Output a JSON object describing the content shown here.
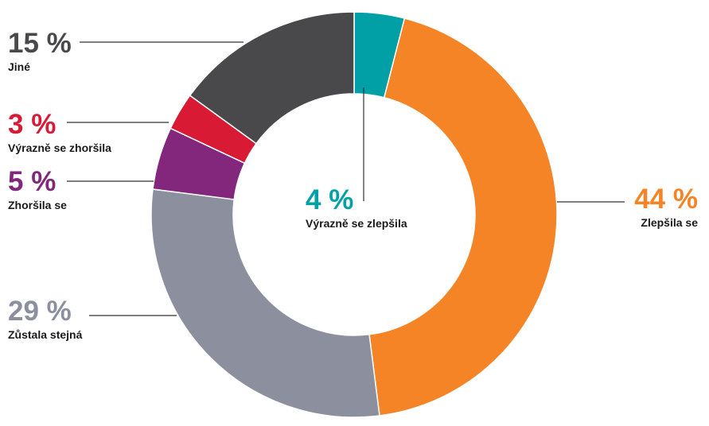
{
  "chart_data": {
    "type": "pie",
    "donut": true,
    "slices": [
      {
        "label": "Výrazně se zlepšila",
        "value": 4,
        "display": "4 %",
        "color": "#00a0a6"
      },
      {
        "label": "Zlepšila se",
        "value": 44,
        "display": "44 %",
        "color": "#f58426"
      },
      {
        "label": "Zůstala stejná",
        "value": 29,
        "display": "29 %",
        "color": "#8c8f9e"
      },
      {
        "label": "Zhoršila se",
        "value": 5,
        "display": "5 %",
        "color": "#83277d"
      },
      {
        "label": "Výrazně se zhoršila",
        "value": 3,
        "display": "3 %",
        "color": "#d91a35"
      },
      {
        "label": "Jiné",
        "value": 15,
        "display": "15 %",
        "color": "#49494b"
      }
    ]
  }
}
